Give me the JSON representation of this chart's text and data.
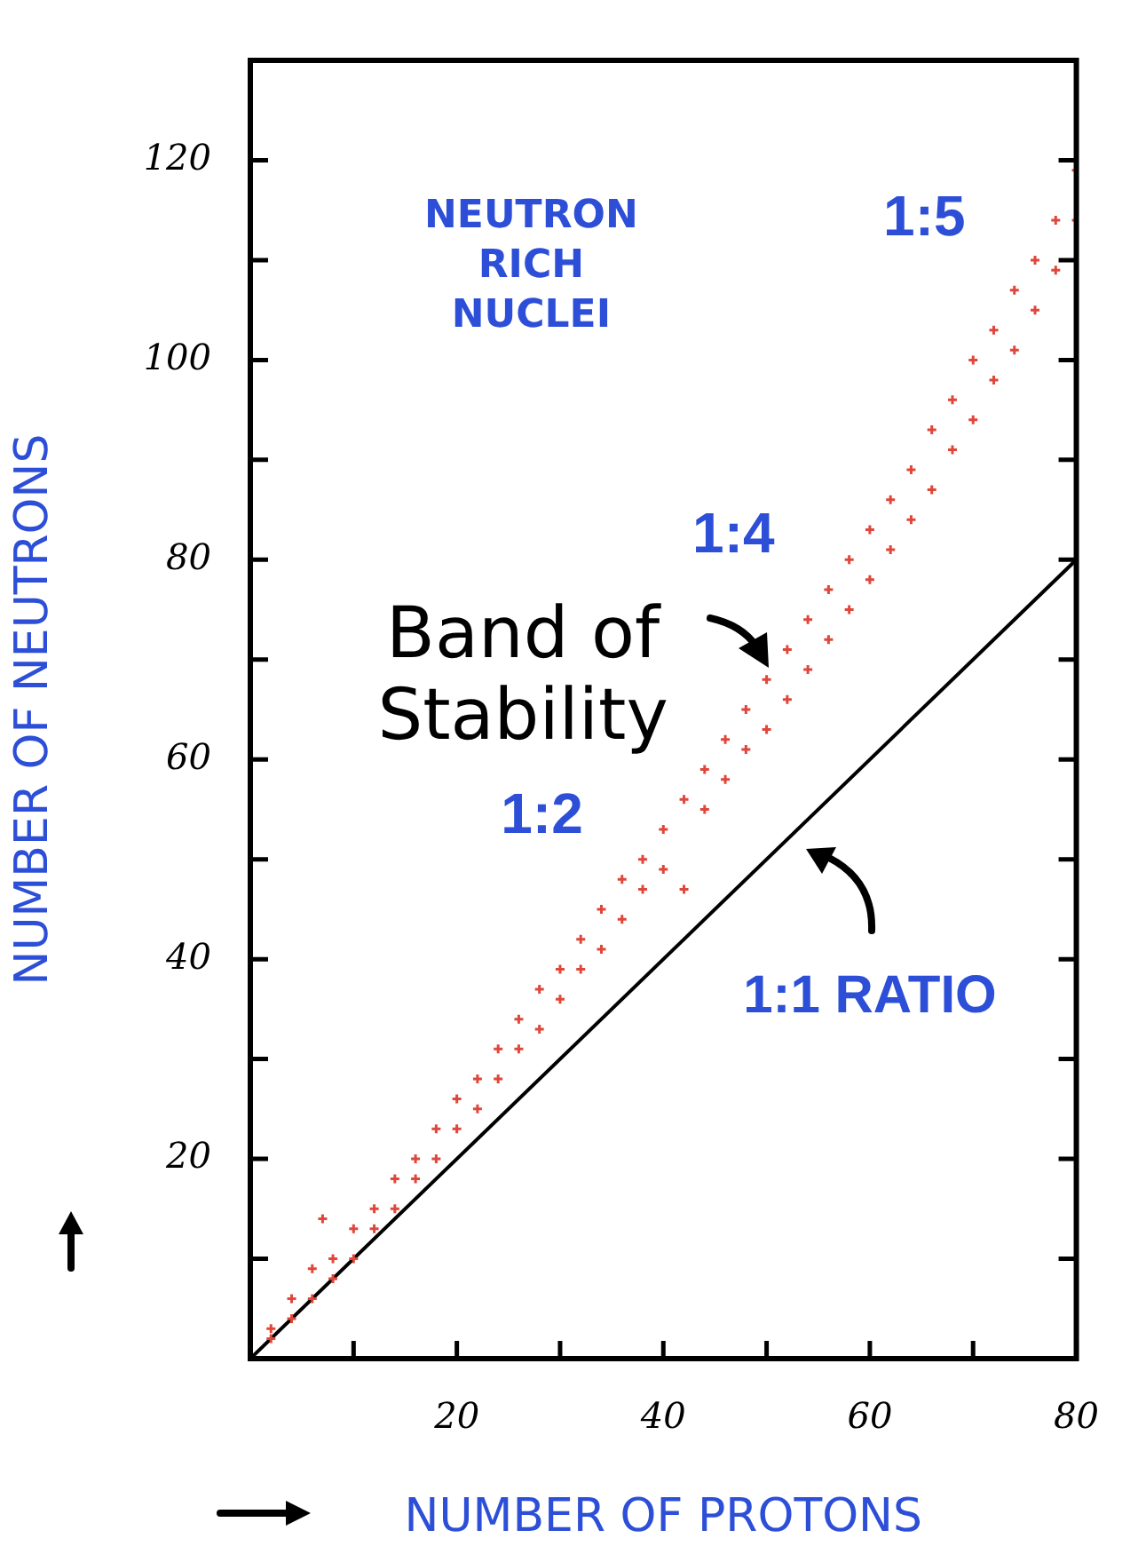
{
  "chart_data": {
    "type": "scatter",
    "xlabel": "NUMBER OF PROTONS",
    "ylabel": "NUMBER OF NEUTRONS",
    "xlim": [
      0,
      80
    ],
    "ylim": [
      0,
      130
    ],
    "xticks": [
      {
        "value": 10,
        "label": null
      },
      20,
      {
        "value": 30,
        "label": null
      },
      40,
      {
        "value": 50,
        "label": null
      },
      60,
      {
        "value": 70,
        "label": null
      },
      80
    ],
    "yticks": [
      {
        "value": 10,
        "label": null
      },
      20,
      {
        "value": 30,
        "label": null
      },
      40,
      {
        "value": 50,
        "label": null
      },
      60,
      {
        "value": 70,
        "label": null
      },
      80,
      {
        "value": 90,
        "label": null
      },
      100,
      {
        "value": 110,
        "label": null
      },
      120
    ],
    "grid": false,
    "legend": false,
    "series": [
      {
        "type": "scatter",
        "color": "#e0473b",
        "marker": "cross",
        "x": [
          2,
          2,
          4,
          4,
          6,
          6,
          7,
          8,
          8,
          10,
          10,
          12,
          12,
          14,
          14,
          16,
          16,
          18,
          18,
          20,
          20,
          22,
          22,
          24,
          24,
          26,
          26,
          28,
          28,
          30,
          30,
          32,
          32,
          34,
          34,
          36,
          36,
          38,
          38,
          40,
          40,
          42,
          42,
          44,
          44,
          46,
          46,
          48,
          48,
          50,
          50,
          52,
          52,
          54,
          54,
          56,
          56,
          58,
          58,
          60,
          60,
          62,
          62,
          64,
          64,
          66,
          66,
          68,
          68,
          70,
          70,
          72,
          72,
          74,
          74,
          76,
          76,
          78,
          78,
          80,
          80
        ],
        "values": [
          2,
          3,
          4,
          6,
          6,
          9,
          14,
          8,
          10,
          10,
          13,
          13,
          15,
          15,
          18,
          18,
          20,
          20,
          23,
          23,
          26,
          25,
          28,
          28,
          31,
          31,
          34,
          33,
          37,
          36,
          39,
          39,
          42,
          41,
          45,
          44,
          48,
          47,
          50,
          49,
          53,
          47,
          56,
          55,
          59,
          58,
          62,
          61,
          65,
          63,
          68,
          66,
          71,
          69,
          74,
          72,
          77,
          75,
          80,
          78,
          83,
          81,
          86,
          84,
          89,
          87,
          93,
          91,
          96,
          94,
          100,
          98,
          103,
          101,
          107,
          105,
          110,
          109,
          114,
          114,
          119
        ]
      },
      {
        "type": "line",
        "color": "#000000",
        "x": [
          0,
          80
        ],
        "values": [
          0,
          80
        ]
      }
    ],
    "annotations": [
      "NEUTRON RICH NUCLEI",
      "1:5",
      "1:4",
      "Band of Stability",
      "1:2",
      "1:1 RATIO"
    ]
  }
}
